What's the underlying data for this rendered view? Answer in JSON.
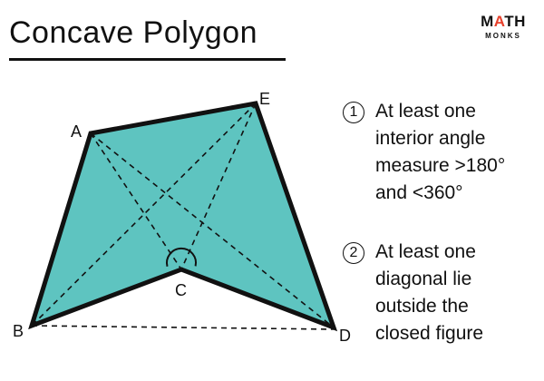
{
  "title": "Concave Polygon",
  "logo": {
    "top_left": "M",
    "top_accent": "A",
    "top_right": "TH",
    "bottom": "MONKS",
    "accent_color": "#e8412c"
  },
  "diagram": {
    "fill_color": "#5ec4c0",
    "vertices": {
      "A": "A",
      "B": "B",
      "C": "C",
      "D": "D",
      "E": "E"
    },
    "reflex_angle_at": "C"
  },
  "properties": [
    {
      "marker": "1",
      "lines": [
        "At least one",
        "interior angle",
        "measure >180°",
        "and <360°"
      ]
    },
    {
      "marker": "2",
      "lines": [
        "At least one",
        "diagonal lie",
        "outside the",
        "closed figure"
      ]
    }
  ]
}
